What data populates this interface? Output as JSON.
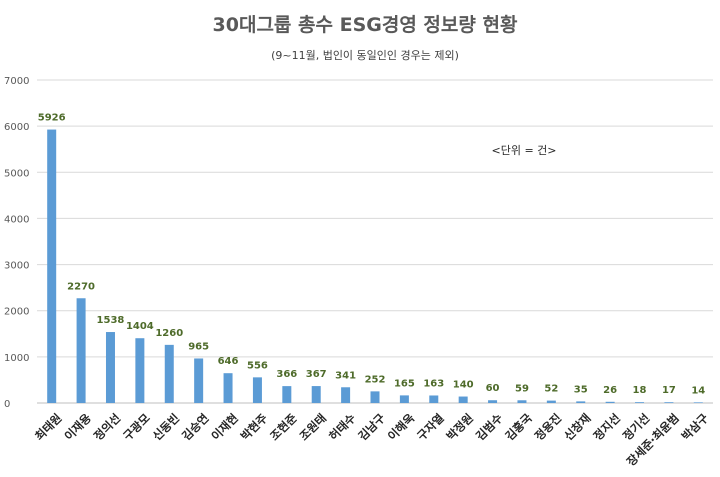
{
  "chart_data": {
    "type": "bar",
    "title": "30대그룹 총수 ESG경영 정보량 현황",
    "subtitle": "(9~11월, 법인이 동일인인 경우는 제외)",
    "annotation": "<단위 = 건>",
    "xlabel": "",
    "ylabel": "",
    "ylim": [
      0,
      7000
    ],
    "yticks": [
      0,
      1000,
      2000,
      3000,
      4000,
      5000,
      6000,
      7000
    ],
    "grid": true,
    "categories": [
      "최태원",
      "이재용",
      "정의선",
      "구광모",
      "신동빈",
      "김승연",
      "이재현",
      "박현주",
      "조현준",
      "조원태",
      "허태수",
      "김남구",
      "이해욱",
      "구자열",
      "박정원",
      "김범수",
      "김홍국",
      "정용진",
      "신창재",
      "정지선",
      "정기선",
      "장세준·최윤범",
      "박삼구"
    ],
    "values": [
      5926,
      2270,
      1538,
      1404,
      1260,
      965,
      646,
      556,
      366,
      367,
      341,
      252,
      165,
      163,
      140,
      60,
      59,
      52,
      35,
      26,
      18,
      17,
      14
    ],
    "colors": {
      "bar": "#5b9bd5",
      "data_label": "#4e6b2a",
      "grid": "#d9d9d9"
    }
  }
}
